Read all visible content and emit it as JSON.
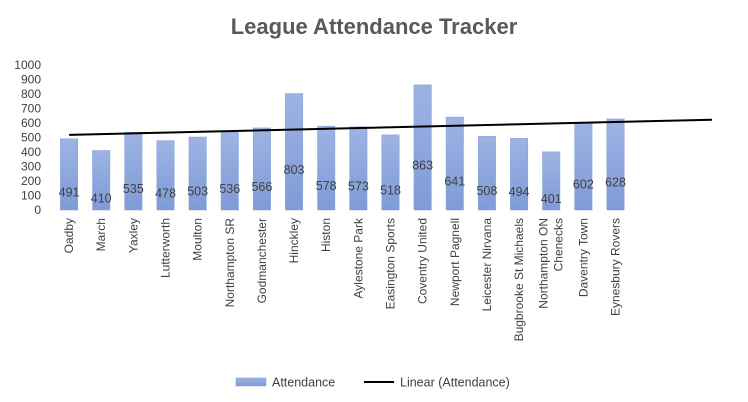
{
  "chart_data": {
    "type": "bar",
    "title": "League Attendance Tracker",
    "xlabel": "",
    "ylabel": "",
    "categories": [
      "Oadby",
      "March",
      "Yaxley",
      "Lutterworth",
      "Moulton",
      "Northampton SR",
      "Godmanchester",
      "Hinckley",
      "Histon",
      "Aylestone Park",
      "Easington Sports",
      "Coventry United",
      "Newport Pagnell",
      "Leicester Nirvana",
      "Bugbrooke St Michaels",
      "Northampton ON Chenecks",
      "Daventry Town",
      "Eynesbury Rovers"
    ],
    "category_label_lines": [
      [
        "Oadby"
      ],
      [
        "March"
      ],
      [
        "Yaxley"
      ],
      [
        "Lutterworth"
      ],
      [
        "Moulton"
      ],
      [
        "Northampton SR"
      ],
      [
        "Godmanchester"
      ],
      [
        "Hinckley"
      ],
      [
        "Histon"
      ],
      [
        "Aylestone Park"
      ],
      [
        "Easington Sports"
      ],
      [
        "Coventry United"
      ],
      [
        "Newport Pagnell"
      ],
      [
        "Leicester Nirvana"
      ],
      [
        "Bugbrooke St Michaels"
      ],
      [
        "Northampton ON",
        "Chenecks"
      ],
      [
        "Daventry Town"
      ],
      [
        "Eynesbury Rovers"
      ]
    ],
    "series": [
      {
        "name": "Attendance",
        "values": [
          491,
          410,
          535,
          478,
          503,
          536,
          566,
          803,
          578,
          573,
          518,
          863,
          641,
          508,
          494,
          401,
          602,
          628
        ],
        "color": "#8faadc"
      }
    ],
    "trendline": {
      "name": "Linear (Attendance)",
      "type": "linear",
      "color": "#000000",
      "extend_categories": 3
    },
    "yticks": [
      "0",
      "100",
      "200",
      "300",
      "400",
      "500",
      "600",
      "700",
      "800",
      "900",
      "1000"
    ],
    "ylim": [
      0,
      1000
    ],
    "data_labels": true,
    "grid": false,
    "legend": "bottom"
  }
}
